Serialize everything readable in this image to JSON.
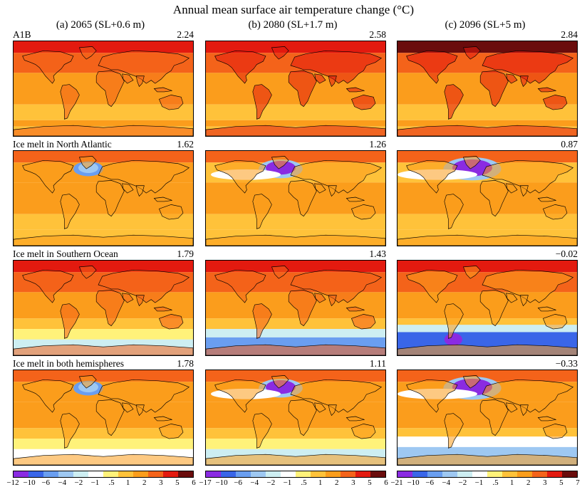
{
  "title": "Annual mean surface air temperature change (°C)",
  "columns": [
    "(a) 2065 (SL+0.6 m)",
    "(b) 2080 (SL+1.7 m)",
    "(c) 2096 (SL+5 m)"
  ],
  "rows": [
    "A1B",
    "Ice melt in North Atlantic",
    "Ice melt in Southern Ocean",
    "Ice melt in both hemispheres"
  ],
  "global_means": [
    [
      "2.24",
      "2.58",
      "2.84"
    ],
    [
      "1.62",
      "1.26",
      "0.87"
    ],
    [
      "1.79",
      "1.43",
      "−0.02"
    ],
    [
      "1.78",
      "1.11",
      "−0.33"
    ]
  ],
  "colorbars": [
    {
      "ticks": [
        "−12",
        "−10",
        "−6",
        "−4",
        "−2",
        "−1",
        ".5",
        "1",
        "2",
        "3",
        "5",
        "6"
      ]
    },
    {
      "ticks": [
        "−17",
        "−10",
        "−6",
        "−4",
        "−2",
        "−1",
        ".5",
        "1",
        "2",
        "3",
        "5",
        "6"
      ]
    },
    {
      "ticks": [
        "−21",
        "−10",
        "−6",
        "−4",
        "−2",
        "−1",
        ".5",
        "1",
        "2",
        "3",
        "5",
        "7"
      ]
    }
  ],
  "colors": [
    "#8a2be2",
    "#3a66e8",
    "#6a9ef0",
    "#9ec8f2",
    "#cdeef2",
    "#ffffff",
    "#fff27a",
    "#ffc23a",
    "#fb9d1c",
    "#f4631a",
    "#e31a0f",
    "#6a0c0c"
  ]
}
